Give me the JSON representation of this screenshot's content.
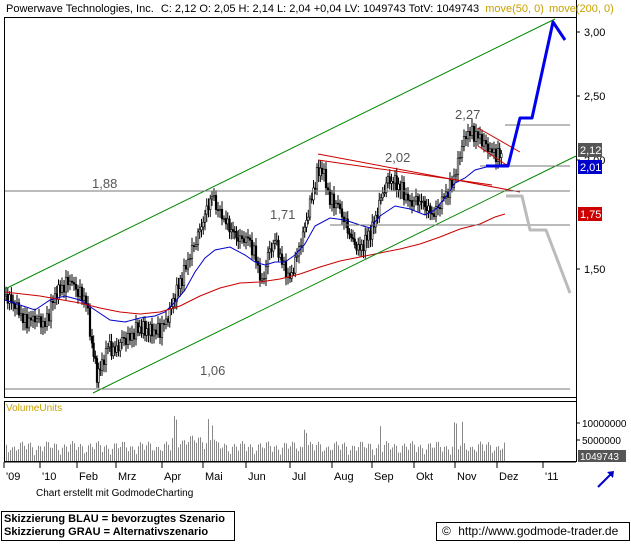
{
  "header": {
    "company": "Powerwave Technologies, Inc.",
    "quote": "C: 2,12 O: 2,05 H: 2,14 L: 2,04 +0,04 LV: 1049743 TotV: 1049743",
    "ma50": "move(50, 0)",
    "ma200": "move(200, 0)"
  },
  "chart_data": {
    "type": "candlestick",
    "price_axis": {
      "ylim": [
        0.9,
        3.1
      ],
      "ticks": [
        "3,00",
        "2,50",
        "2,00",
        "1,50"
      ],
      "tick_values": [
        3.0,
        2.5,
        2.0,
        1.5
      ]
    },
    "volume_axis": {
      "label": "VolumeUnits",
      "ticks": [
        "10000000",
        "5000000"
      ],
      "tick_values": [
        10000000,
        5000000
      ],
      "last_volume": "1049743"
    },
    "x_axis": {
      "labels": [
        "'09",
        "'10",
        "Feb",
        "Mrz",
        "Apr",
        "Mai",
        "Jun",
        "Jul",
        "Aug",
        "Sep",
        "Okt",
        "Nov",
        "Dez",
        "'11"
      ]
    },
    "price_tags": [
      {
        "value": "2,12",
        "color": "#555555"
      },
      {
        "value": "2,01",
        "color": "#0000cc"
      },
      {
        "value": "1,75",
        "color": "#cc0000"
      }
    ],
    "levels": [
      {
        "label": "2,27",
        "value": 2.27
      },
      {
        "label": "2,02",
        "value": 2.02
      },
      {
        "label": "1,88",
        "value": 1.88
      },
      {
        "label": "1,71",
        "value": 1.71
      },
      {
        "label": "1,06",
        "value": 1.06
      }
    ],
    "series": [
      {
        "name": "move(50, 0)",
        "color": "#0000cc"
      },
      {
        "name": "move(200, 0)",
        "color": "#cc0000"
      }
    ],
    "scenarios": [
      {
        "name": "Skizzierung BLAU = bevorzugtes Szenario",
        "color": "#0000ee"
      },
      {
        "name": "Skizzierung GRAU = Alternativszenario",
        "color": "#bbbbbb"
      }
    ]
  },
  "footer": {
    "credit": "Chart erstellt mit GodmodeCharting",
    "legend_blue": "Skizzierung BLAU = bevorzugtes Szenario",
    "legend_gray": "Skizzierung GRAU = Alternativszenario",
    "copyright_symbol": "©",
    "url": "http://www.godmode-trader.de"
  },
  "colors": {
    "ma50": "#0000cc",
    "ma200": "#cc0000",
    "channel": "#008800",
    "triangle": "#cc0000",
    "header_ma": "#c8a000"
  }
}
